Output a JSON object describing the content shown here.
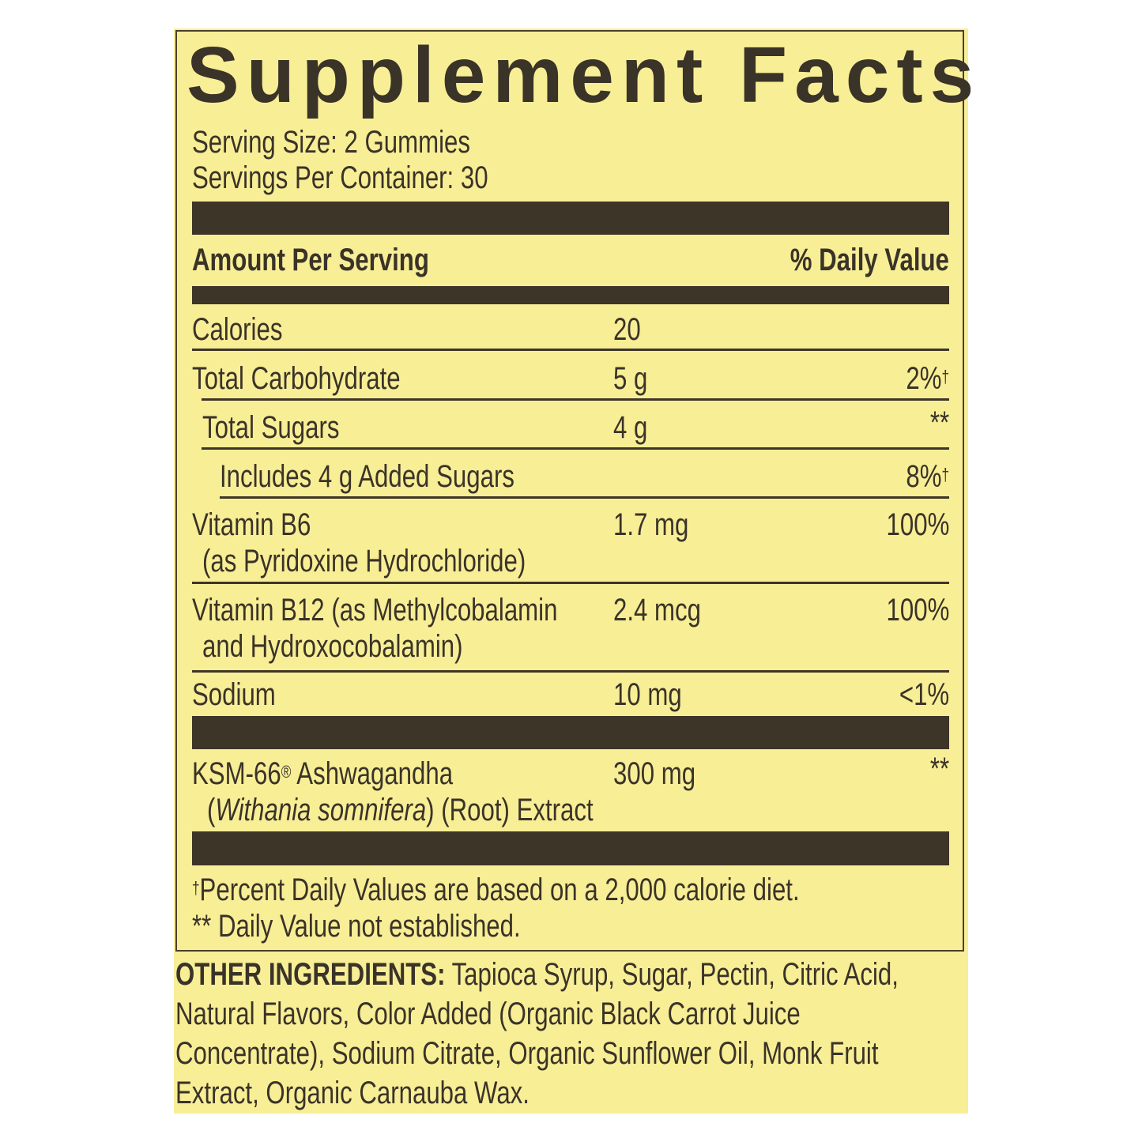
{
  "title": "Supplement Facts",
  "serving_size": "Serving Size: 2 Gummies",
  "servings_per_container": "Servings Per Container: 30",
  "header": {
    "amount": "Amount Per Serving",
    "dv": "% Daily Value"
  },
  "rows": [
    {
      "name": "Calories",
      "amount": "20",
      "dv": ""
    },
    {
      "name": "Total Carbohydrate",
      "amount": "5 g",
      "dv": "2%",
      "dv_mark": "†"
    },
    {
      "name": "Total Sugars",
      "amount": "4 g",
      "dv": "**"
    },
    {
      "name": "Includes 4 g Added Sugars",
      "amount": "",
      "dv": "8%",
      "dv_mark": "†"
    },
    {
      "name": "Vitamin B6",
      "name2": "(as Pyridoxine Hydrochloride)",
      "amount": "1.7 mg",
      "dv": "100%"
    },
    {
      "name": "Vitamin B12 (as Methylcobalamin",
      "name2": "and Hydroxocobalamin)",
      "amount": "2.4 mcg",
      "dv": "100%"
    },
    {
      "name": "Sodium",
      "amount": "10 mg",
      "dv": "<1%"
    }
  ],
  "ashwagandha": {
    "name_prefix": "KSM-66",
    "reg": "®",
    "name_suffix": " Ashwagandha",
    "latin": "Withania somnifera",
    "rest": ") (Root) Extract",
    "open": "(",
    "amount": "300 mg",
    "dv": "**"
  },
  "footnotes": {
    "dagger": "†",
    "dagger_text": "Percent Daily Values are based on a 2,000 calorie diet.",
    "stars_text": "** Daily Value not established."
  },
  "other_ingredients": {
    "label": "OTHER INGREDIENTS:",
    "lines": [
      " Tapioca Syrup, Sugar, Pectin, Citric Acid,",
      "Natural Flavors, Color Added (Organic Black Carrot Juice",
      "Concentrate), Sodium Citrate, Organic Sunflower Oil, Monk Fruit",
      "Extract, Organic Carnauba Wax."
    ]
  },
  "colors": {
    "background": "#f8ee96",
    "ink": "#3a3328"
  }
}
